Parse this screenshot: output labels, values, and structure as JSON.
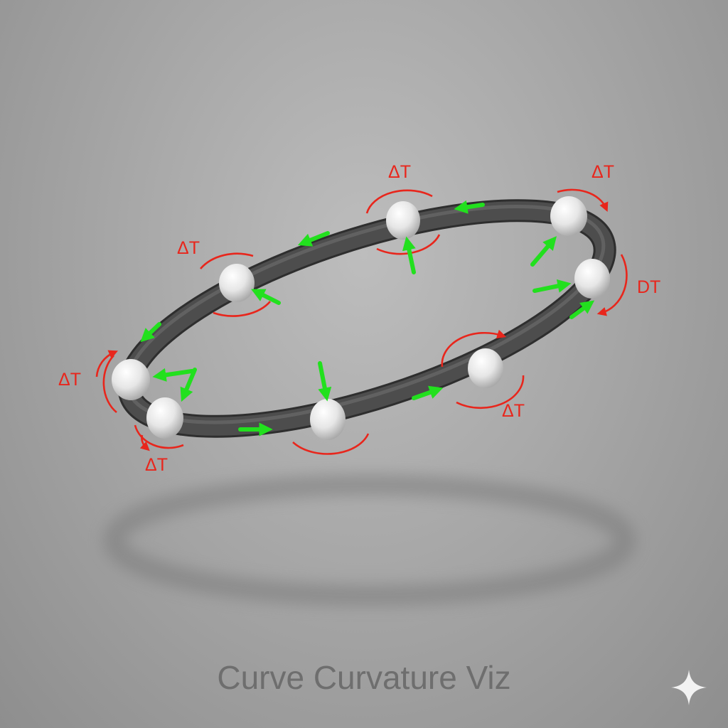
{
  "caption": "Curve Curvature Viz",
  "colors": {
    "tube": "#4a4a4a",
    "node": "#efefef",
    "tangent_arrow": "#22e01e",
    "delta_arc": "#e8261c",
    "caption": "#6e6e6e"
  },
  "delta_labels": [
    "ΔT",
    "ΔT",
    "ΔT",
    "DT",
    "ΔT",
    "ΔT",
    "ΔT"
  ],
  "icons": {
    "sparkle": "sparkle-icon"
  }
}
